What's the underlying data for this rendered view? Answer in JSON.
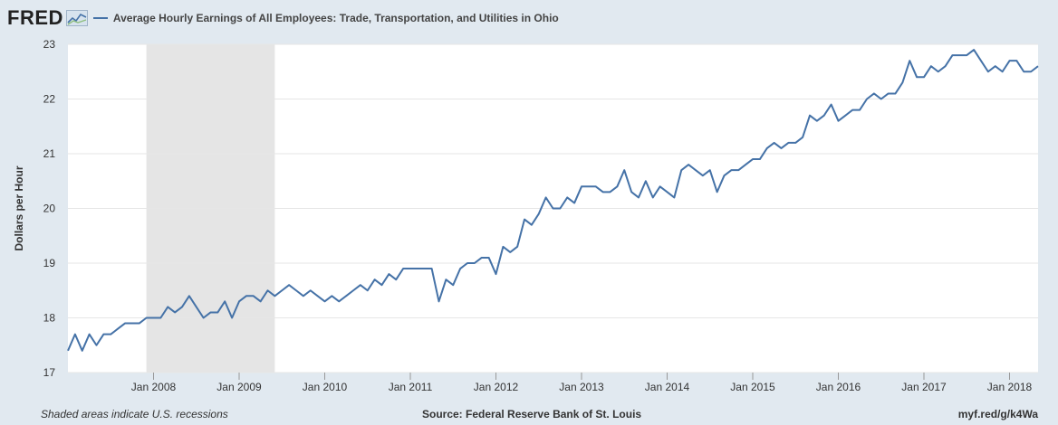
{
  "header": {
    "logo_text": "FRED",
    "logo_icon": "chart-line-icon"
  },
  "footer": {
    "note": "Shaded areas indicate U.S. recessions",
    "source": "Source: Federal Reserve Bank of St. Louis",
    "link": "myf.red/g/k4Wa"
  },
  "colors": {
    "line": "#4572a7",
    "plot_bg": "#ffffff",
    "page_bg": "#e1e9f0",
    "recession": "#e5e5e5",
    "grid": "#e6e6e6"
  },
  "chart_data": {
    "type": "line",
    "title": "",
    "ylabel": "Dollars per Hour",
    "xlabel": "",
    "ylim": [
      17,
      23
    ],
    "yticks": [
      17,
      18,
      19,
      20,
      21,
      22,
      23
    ],
    "xlim": [
      "2007-01",
      "2018-05"
    ],
    "xticks": [
      {
        "date": "2008-01",
        "label": "Jan 2008"
      },
      {
        "date": "2009-01",
        "label": "Jan 2009"
      },
      {
        "date": "2010-01",
        "label": "Jan 2010"
      },
      {
        "date": "2011-01",
        "label": "Jan 2011"
      },
      {
        "date": "2012-01",
        "label": "Jan 2012"
      },
      {
        "date": "2013-01",
        "label": "Jan 2013"
      },
      {
        "date": "2014-01",
        "label": "Jan 2014"
      },
      {
        "date": "2015-01",
        "label": "Jan 2015"
      },
      {
        "date": "2016-01",
        "label": "Jan 2016"
      },
      {
        "date": "2017-01",
        "label": "Jan 2017"
      },
      {
        "date": "2018-01",
        "label": "Jan 2018"
      }
    ],
    "grid": true,
    "legend": "top-left",
    "recessions": [
      {
        "start": "2007-12",
        "end": "2009-06"
      }
    ],
    "series": [
      {
        "name": "Average Hourly Earnings of All Employees: Trade, Transportation, and Utilities in Ohio",
        "start": "2007-01",
        "frequency": "monthly",
        "values": [
          17.4,
          17.7,
          17.4,
          17.7,
          17.5,
          17.7,
          17.7,
          17.8,
          17.9,
          17.9,
          17.9,
          18.0,
          18.0,
          18.0,
          18.2,
          18.1,
          18.2,
          18.4,
          18.2,
          18.0,
          18.1,
          18.1,
          18.3,
          18.0,
          18.3,
          18.4,
          18.4,
          18.3,
          18.5,
          18.4,
          18.5,
          18.6,
          18.5,
          18.4,
          18.5,
          18.4,
          18.3,
          18.4,
          18.3,
          18.4,
          18.5,
          18.6,
          18.5,
          18.7,
          18.6,
          18.8,
          18.7,
          18.9,
          18.9,
          18.9,
          18.9,
          18.9,
          18.3,
          18.7,
          18.6,
          18.9,
          19.0,
          19.0,
          19.1,
          19.1,
          18.8,
          19.3,
          19.2,
          19.3,
          19.8,
          19.7,
          19.9,
          20.2,
          20.0,
          20.0,
          20.2,
          20.1,
          20.4,
          20.4,
          20.4,
          20.3,
          20.3,
          20.4,
          20.7,
          20.3,
          20.2,
          20.5,
          20.2,
          20.4,
          20.3,
          20.2,
          20.7,
          20.8,
          20.7,
          20.6,
          20.7,
          20.3,
          20.6,
          20.7,
          20.7,
          20.8,
          20.9,
          20.9,
          21.1,
          21.2,
          21.1,
          21.2,
          21.2,
          21.3,
          21.7,
          21.6,
          21.7,
          21.9,
          21.6,
          21.7,
          21.8,
          21.8,
          22.0,
          22.1,
          22.0,
          22.1,
          22.1,
          22.3,
          22.7,
          22.4,
          22.4,
          22.6,
          22.5,
          22.6,
          22.8,
          22.8,
          22.8,
          22.9,
          22.7,
          22.5,
          22.6,
          22.5,
          22.7,
          22.7,
          22.5,
          22.5,
          22.6
        ]
      }
    ]
  }
}
